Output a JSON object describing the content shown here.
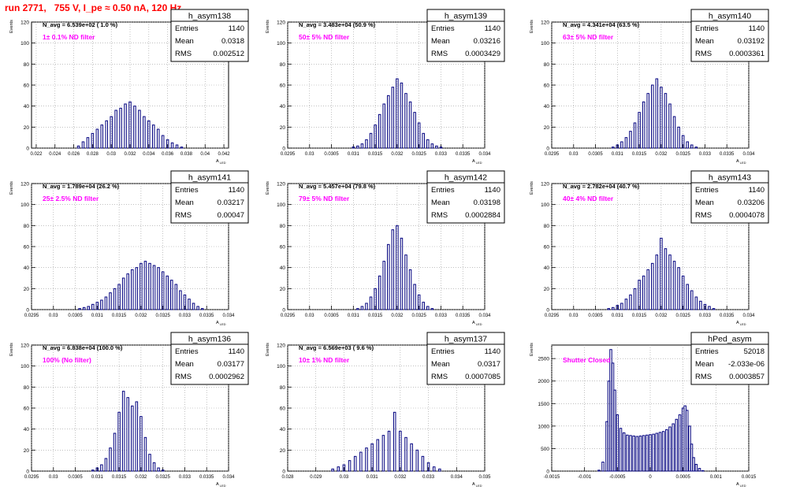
{
  "title": "run 2771,   755 V, I_pe ≈ 0.50 nA, 120 Hz",
  "colors": {
    "title": "#ff0000",
    "histogram": "#00007f",
    "annotation": "#ff00ff",
    "grid": "#9a9a9a"
  },
  "chart_data": [
    {
      "type": "histogram",
      "name": "h_asym138",
      "ylabel": "Events",
      "xlabel": "A_LED",
      "navg": "N_avg = 6.539e+02 ( 1.0 %)",
      "filter": "1± 0.1% ND filter",
      "stats": {
        "Entries": "1140",
        "Mean": "0.0318",
        "RMS": "0.002512"
      },
      "xlim": [
        0.0215,
        0.0425
      ],
      "ylim": [
        0,
        120
      ],
      "xticks": [
        0.022,
        0.024,
        0.026,
        0.028,
        0.03,
        0.032,
        0.034,
        0.036,
        0.038,
        0.04,
        0.042
      ],
      "xticklabels": [
        "0.022",
        "0.024",
        "0.026",
        "0.028",
        "0.03",
        "0.032",
        "0.034",
        "0.036",
        "0.038",
        "0.04",
        "0.042"
      ],
      "yticks": [
        0,
        20,
        40,
        60,
        80,
        100,
        120
      ],
      "bin_width": 0.00021,
      "x": [
        0.0265,
        0.027,
        0.0275,
        0.028,
        0.0285,
        0.029,
        0.0295,
        0.03,
        0.0305,
        0.031,
        0.0315,
        0.032,
        0.0325,
        0.033,
        0.0335,
        0.034,
        0.0345,
        0.035,
        0.0355,
        0.036,
        0.0365,
        0.037,
        0.0375
      ],
      "values": [
        2,
        6,
        10,
        14,
        18,
        22,
        26,
        30,
        36,
        38,
        42,
        44,
        40,
        36,
        30,
        26,
        22,
        18,
        12,
        8,
        5,
        3,
        1
      ]
    },
    {
      "type": "histogram",
      "name": "h_asym139",
      "ylabel": "Events",
      "xlabel": "A_LED",
      "navg": "N_avg = 3.483e+04 (50.9 %)",
      "filter": "50± 5% ND filter",
      "stats": {
        "Entries": "1140",
        "Mean": "0.03216",
        "RMS": "0.0003429"
      },
      "xlim": [
        0.0295,
        0.034
      ],
      "ylim": [
        0,
        120
      ],
      "xticks": [
        0.0295,
        0.03,
        0.0305,
        0.031,
        0.0315,
        0.032,
        0.0325,
        0.033,
        0.0335,
        0.034
      ],
      "xticklabels": [
        "0.0295",
        "0.03",
        "0.0305",
        "0.031",
        "0.0315",
        "0.032",
        "0.0325",
        "0.033",
        "0.0335",
        "0.034"
      ],
      "yticks": [
        0,
        20,
        40,
        60,
        80,
        100,
        120
      ],
      "bin_width": 4.5e-05,
      "x": [
        0.031,
        0.0311,
        0.0312,
        0.0313,
        0.0314,
        0.0315,
        0.0316,
        0.0317,
        0.0318,
        0.0319,
        0.032,
        0.0321,
        0.0322,
        0.0323,
        0.0324,
        0.0325,
        0.0326,
        0.0327,
        0.0328,
        0.0329,
        0.033
      ],
      "values": [
        1,
        2,
        4,
        8,
        14,
        22,
        32,
        42,
        50,
        58,
        66,
        62,
        52,
        44,
        34,
        24,
        14,
        8,
        4,
        2,
        1
      ]
    },
    {
      "type": "histogram",
      "name": "h_asym140",
      "ylabel": "Events",
      "xlabel": "A_LED",
      "navg": "N_avg = 4.341e+04 (63.5 %)",
      "filter": "63± 5% ND filter",
      "stats": {
        "Entries": "1140",
        "Mean": "0.03192",
        "RMS": "0.0003361"
      },
      "xlim": [
        0.0295,
        0.034
      ],
      "ylim": [
        0,
        120
      ],
      "xticks": [
        0.0295,
        0.03,
        0.0305,
        0.031,
        0.0315,
        0.032,
        0.0325,
        0.033,
        0.0335,
        0.034
      ],
      "xticklabels": [
        "0.0295",
        "0.03",
        "0.0305",
        "0.031",
        "0.0315",
        "0.032",
        "0.0325",
        "0.033",
        "0.0335",
        "0.034"
      ],
      "yticks": [
        0,
        20,
        40,
        60,
        80,
        100,
        120
      ],
      "bin_width": 4.5e-05,
      "x": [
        0.0309,
        0.031,
        0.0311,
        0.0312,
        0.0313,
        0.0314,
        0.0315,
        0.0316,
        0.0317,
        0.0318,
        0.0319,
        0.032,
        0.0321,
        0.0322,
        0.0323,
        0.0324,
        0.0325,
        0.0326,
        0.0327,
        0.0328
      ],
      "values": [
        1,
        3,
        6,
        10,
        16,
        24,
        34,
        44,
        52,
        60,
        66,
        58,
        52,
        42,
        30,
        20,
        12,
        6,
        3,
        1
      ]
    },
    {
      "type": "histogram",
      "name": "h_asym141",
      "ylabel": "Events",
      "xlabel": "A_LED",
      "navg": "N_avg = 1.789e+04 (26.2 %)",
      "filter": "25± 2.5% ND filter",
      "stats": {
        "Entries": "1140",
        "Mean": "0.03217",
        "RMS": "0.00047"
      },
      "xlim": [
        0.0295,
        0.034
      ],
      "ylim": [
        0,
        120
      ],
      "xticks": [
        0.0295,
        0.03,
        0.0305,
        0.031,
        0.0315,
        0.032,
        0.0325,
        0.033,
        0.0335,
        0.034
      ],
      "xticklabels": [
        "0.0295",
        "0.03",
        "0.0305",
        "0.031",
        "0.0315",
        "0.032",
        "0.0325",
        "0.033",
        "0.0335",
        "0.034"
      ],
      "yticks": [
        0,
        20,
        40,
        60,
        80,
        100,
        120
      ],
      "bin_width": 4.5e-05,
      "x": [
        0.0306,
        0.0307,
        0.0308,
        0.0309,
        0.031,
        0.0311,
        0.0312,
        0.0313,
        0.0314,
        0.0315,
        0.0316,
        0.0317,
        0.0318,
        0.0319,
        0.032,
        0.0321,
        0.0322,
        0.0323,
        0.0324,
        0.0325,
        0.0326,
        0.0327,
        0.0328,
        0.0329,
        0.033,
        0.0331,
        0.0332,
        0.0333,
        0.0334
      ],
      "values": [
        1,
        2,
        3,
        5,
        7,
        9,
        12,
        16,
        20,
        24,
        30,
        34,
        38,
        40,
        44,
        46,
        44,
        42,
        40,
        36,
        32,
        28,
        24,
        18,
        14,
        10,
        6,
        3,
        1
      ]
    },
    {
      "type": "histogram",
      "name": "h_asym142",
      "ylabel": "Events",
      "xlabel": "A_LED",
      "navg": "N_avg = 5.457e+04 (79.8 %)",
      "filter": "79± 5% ND filter",
      "stats": {
        "Entries": "1140",
        "Mean": "0.03198",
        "RMS": "0.0002884"
      },
      "xlim": [
        0.0295,
        0.034
      ],
      "ylim": [
        0,
        120
      ],
      "xticks": [
        0.0295,
        0.03,
        0.0305,
        0.031,
        0.0315,
        0.032,
        0.0325,
        0.033,
        0.0335,
        0.034
      ],
      "xticklabels": [
        "0.0295",
        "0.03",
        "0.0305",
        "0.031",
        "0.0315",
        "0.032",
        "0.0325",
        "0.033",
        "0.0335",
        "0.034"
      ],
      "yticks": [
        0,
        20,
        40,
        60,
        80,
        100,
        120
      ],
      "bin_width": 4.5e-05,
      "x": [
        0.0311,
        0.0312,
        0.0313,
        0.0314,
        0.0315,
        0.0316,
        0.0317,
        0.0318,
        0.0319,
        0.032,
        0.0321,
        0.0322,
        0.0323,
        0.0324,
        0.0325,
        0.0326,
        0.0327,
        0.0328
      ],
      "values": [
        1,
        3,
        6,
        12,
        20,
        32,
        46,
        62,
        76,
        80,
        68,
        52,
        38,
        24,
        14,
        7,
        3,
        1
      ]
    },
    {
      "type": "histogram",
      "name": "h_asym143",
      "ylabel": "Events",
      "xlabel": "A_LED",
      "navg": "N_avg = 2.782e+04 (40.7 %)",
      "filter": "40± 4% ND filter",
      "stats": {
        "Entries": "1140",
        "Mean": "0.03206",
        "RMS": "0.0004078"
      },
      "xlim": [
        0.0295,
        0.034
      ],
      "ylim": [
        0,
        120
      ],
      "xticks": [
        0.0295,
        0.03,
        0.0305,
        0.031,
        0.0315,
        0.032,
        0.0325,
        0.033,
        0.0335,
        0.034
      ],
      "xticklabels": [
        "0.0295",
        "0.03",
        "0.0305",
        "0.031",
        "0.0315",
        "0.032",
        "0.0325",
        "0.033",
        "0.0335",
        "0.034"
      ],
      "yticks": [
        0,
        20,
        40,
        60,
        80,
        100,
        120
      ],
      "bin_width": 4.5e-05,
      "x": [
        0.0308,
        0.0309,
        0.031,
        0.0311,
        0.0312,
        0.0313,
        0.0314,
        0.0315,
        0.0316,
        0.0317,
        0.0318,
        0.0319,
        0.032,
        0.0321,
        0.0322,
        0.0323,
        0.0324,
        0.0325,
        0.0326,
        0.0327,
        0.0328,
        0.0329,
        0.033,
        0.0331,
        0.0332
      ],
      "values": [
        1,
        2,
        4,
        6,
        10,
        14,
        20,
        28,
        32,
        38,
        44,
        52,
        68,
        58,
        52,
        46,
        40,
        32,
        24,
        18,
        12,
        8,
        5,
        3,
        1
      ]
    },
    {
      "type": "histogram",
      "name": "h_asym136",
      "ylabel": "Events",
      "xlabel": "A_LED",
      "navg": "N_avg = 6.838e+04 (100.0 %)",
      "filter": "100% (No filter)",
      "stats": {
        "Entries": "1140",
        "Mean": "0.03177",
        "RMS": "0.0002962"
      },
      "xlim": [
        0.0295,
        0.034
      ],
      "ylim": [
        0,
        120
      ],
      "xticks": [
        0.0295,
        0.03,
        0.0305,
        0.031,
        0.0315,
        0.032,
        0.0325,
        0.033,
        0.0335,
        0.034
      ],
      "xticklabels": [
        "0.0295",
        "0.03",
        "0.0305",
        "0.031",
        "0.0315",
        "0.032",
        "0.0325",
        "0.033",
        "0.0335",
        "0.034"
      ],
      "yticks": [
        0,
        20,
        40,
        60,
        80,
        100,
        120
      ],
      "bin_width": 4.5e-05,
      "x": [
        0.0309,
        0.031,
        0.0311,
        0.0312,
        0.0313,
        0.0314,
        0.0315,
        0.0316,
        0.0317,
        0.0318,
        0.0319,
        0.032,
        0.0321,
        0.0322,
        0.0323,
        0.0324,
        0.0325
      ],
      "values": [
        1,
        3,
        6,
        12,
        22,
        36,
        56,
        76,
        70,
        62,
        66,
        52,
        32,
        16,
        8,
        3,
        1
      ]
    },
    {
      "type": "histogram",
      "name": "h_asym137",
      "ylabel": "Events",
      "xlabel": "A_LED",
      "navg": "N_avg = 6.569e+03 ( 9.6 %)",
      "filter": "10± 1% ND filter",
      "stats": {
        "Entries": "1140",
        "Mean": "0.0317",
        "RMS": "0.0007085"
      },
      "xlim": [
        0.028,
        0.035
      ],
      "ylim": [
        0,
        120
      ],
      "xticks": [
        0.028,
        0.029,
        0.03,
        0.031,
        0.032,
        0.033,
        0.034,
        0.035
      ],
      "xticklabels": [
        "0.028",
        "0.029",
        "0.03",
        "0.031",
        "0.032",
        "0.033",
        "0.034",
        "0.035"
      ],
      "yticks": [
        0,
        20,
        40,
        60,
        80,
        100,
        120
      ],
      "bin_width": 7e-05,
      "x": [
        0.0296,
        0.0298,
        0.03,
        0.0302,
        0.0304,
        0.0306,
        0.0308,
        0.031,
        0.0312,
        0.0314,
        0.0316,
        0.0318,
        0.032,
        0.0322,
        0.0324,
        0.0326,
        0.0328,
        0.033,
        0.0332,
        0.0334
      ],
      "values": [
        2,
        4,
        6,
        10,
        14,
        18,
        22,
        26,
        30,
        34,
        38,
        56,
        38,
        32,
        26,
        20,
        14,
        8,
        4,
        2
      ]
    },
    {
      "type": "histogram",
      "name": "hPed_asym",
      "ylabel": "Events",
      "xlabel": "A_LED",
      "navg": "",
      "filter": "Shutter Closed",
      "stats": {
        "Entries": "52018",
        "Mean": "-2.033e-06",
        "RMS": "0.0003857"
      },
      "xlim": [
        -0.0015,
        0.0015
      ],
      "ylim": [
        0,
        2800
      ],
      "xticks": [
        -0.0015,
        -0.001,
        -0.0005,
        0,
        0.0005,
        0.001,
        0.0015
      ],
      "xticklabels": [
        "-0.0015",
        "-0.001",
        "-0.0005",
        "0",
        "0.0005",
        "0.001",
        "0.0015"
      ],
      "yticks": [
        0,
        500,
        1000,
        1500,
        2000,
        2500
      ],
      "bin_width": 3e-05,
      "x": [
        -0.00078,
        -0.00072,
        -0.00066,
        -0.00063,
        -0.0006,
        -0.00057,
        -0.00054,
        -0.0005,
        -0.00045,
        -0.0004,
        -0.00035,
        -0.0003,
        -0.00025,
        -0.0002,
        -0.00015,
        -0.0001,
        -5e-05,
        0,
        5e-05,
        0.0001,
        0.00015,
        0.0002,
        0.00025,
        0.0003,
        0.00035,
        0.0004,
        0.00045,
        0.0005,
        0.00053,
        0.00056,
        0.0006,
        0.00063,
        0.00066,
        0.0007,
        0.00075,
        0.0008
      ],
      "values": [
        20,
        200,
        1100,
        2000,
        2700,
        2400,
        1800,
        1250,
        950,
        850,
        800,
        790,
        780,
        770,
        780,
        790,
        800,
        810,
        820,
        840,
        860,
        880,
        920,
        980,
        1050,
        1150,
        1250,
        1400,
        1450,
        1350,
        1000,
        600,
        300,
        150,
        60,
        10
      ]
    }
  ]
}
